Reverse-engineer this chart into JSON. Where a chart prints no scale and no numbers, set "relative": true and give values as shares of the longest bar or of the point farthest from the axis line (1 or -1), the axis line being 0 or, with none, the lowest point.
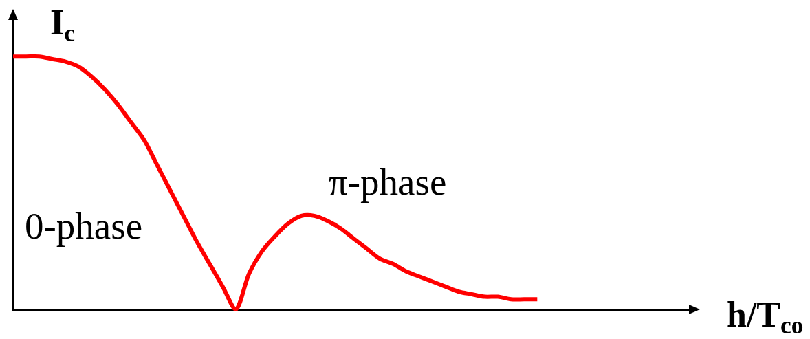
{
  "chart_data": {
    "type": "line",
    "xlabel": "h/T$_{co}$",
    "ylabel": "I$_{c}$",
    "relative": true,
    "color": "#ff0000",
    "marker": "none",
    "line_style": "solid",
    "categories": [
      null,
      null,
      null,
      null,
      null,
      null,
      null,
      null,
      null,
      null,
      null,
      null,
      null,
      null,
      null,
      null,
      null,
      null,
      null,
      null,
      null,
      null,
      null,
      null,
      null,
      null,
      null,
      null,
      null,
      null,
      null,
      null,
      null,
      null,
      null,
      null,
      null,
      null,
      null,
      null,
      null,
      null,
      null,
      null,
      null,
      null,
      null,
      null,
      null,
      null,
      null,
      null,
      null
    ],
    "values": [
      1.0,
      1.0,
      1.0,
      0.99,
      0.98,
      0.96,
      0.92,
      0.87,
      0.81,
      0.74,
      0.67,
      0.57,
      0.47,
      0.37,
      0.27,
      0.18,
      0.09,
      0,
      0.14,
      0.23,
      0.29,
      0.34,
      0.37,
      0.37,
      0.35,
      0.32,
      0.28,
      0.24,
      0.2,
      0.18,
      0.15,
      0.13,
      0.11,
      0.09,
      0.07,
      0.06,
      0.05,
      0.05,
      0.04,
      0.04,
      0.04,
      null,
      null,
      null,
      null,
      null,
      null,
      null,
      null,
      null,
      null,
      null,
      null
    ],
    "annotations": [
      "0-phase",
      "π-phase"
    ]
  }
}
